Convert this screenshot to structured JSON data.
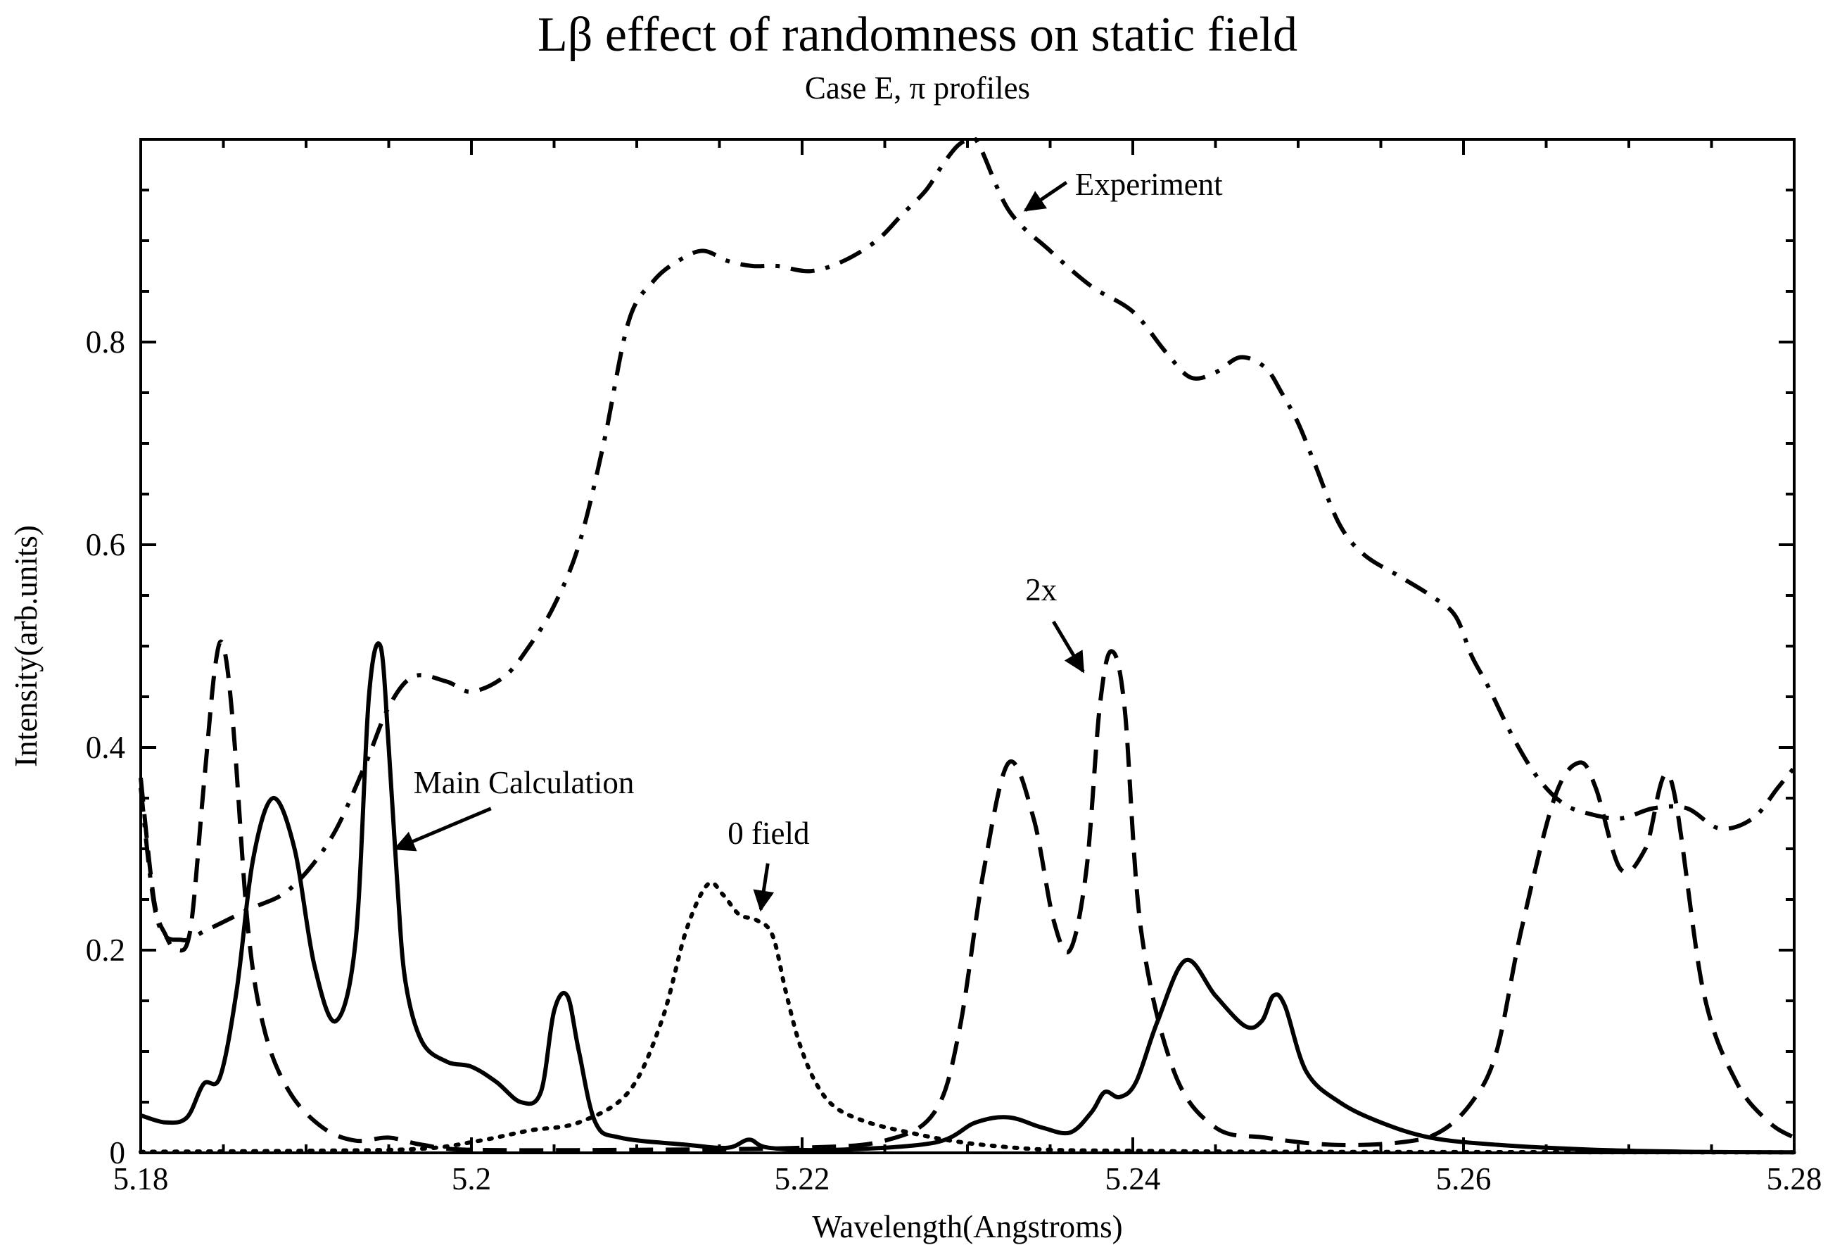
{
  "chart_data": {
    "type": "line",
    "title": "Lβ  effect of randomness on static field",
    "subtitle": "Case E, π profiles",
    "xlabel": "Wavelength(Angstroms)",
    "ylabel": "Intensity(arb.units)",
    "xlim": [
      5.18,
      5.28
    ],
    "ylim": [
      0,
      1.0
    ],
    "x_ticks": [
      5.18,
      5.2,
      5.22,
      5.24,
      5.26,
      5.28
    ],
    "x_tick_labels": [
      "5.18",
      "5.2",
      "5.22",
      "5.24",
      "5.26",
      "5.28"
    ],
    "y_ticks": [
      0,
      0.2,
      0.4,
      0.6,
      0.8
    ],
    "y_tick_labels": [
      "0",
      "0.2",
      "0.4",
      "0.6",
      "0.8"
    ],
    "series": [
      {
        "name": "Experiment",
        "style": "dash-dot",
        "x": [
          5.18,
          5.181,
          5.1825,
          5.184,
          5.1865,
          5.189,
          5.1915,
          5.1935,
          5.195,
          5.1965,
          5.1985,
          5.2,
          5.202,
          5.2035,
          5.205,
          5.2065,
          5.208,
          5.2095,
          5.211,
          5.2125,
          5.214,
          5.2155,
          5.217,
          5.2185,
          5.2205,
          5.2225,
          5.2245,
          5.226,
          5.2275,
          5.2285,
          5.2295,
          5.2305,
          5.2325,
          5.235,
          5.2375,
          5.24,
          5.242,
          5.2435,
          5.245,
          5.2465,
          5.248,
          5.249,
          5.25,
          5.251,
          5.2525,
          5.254,
          5.256,
          5.258,
          5.2595,
          5.2605,
          5.2615,
          5.263,
          5.2645,
          5.266,
          5.2675,
          5.2695,
          5.2715,
          5.2735,
          5.2755,
          5.2775,
          5.279,
          5.28
        ],
        "y": [
          0.36,
          0.23,
          0.21,
          0.22,
          0.24,
          0.26,
          0.31,
          0.38,
          0.44,
          0.47,
          0.465,
          0.455,
          0.47,
          0.5,
          0.54,
          0.6,
          0.7,
          0.82,
          0.86,
          0.88,
          0.89,
          0.88,
          0.875,
          0.875,
          0.87,
          0.88,
          0.9,
          0.925,
          0.95,
          0.975,
          0.995,
          1.0,
          0.93,
          0.89,
          0.855,
          0.83,
          0.79,
          0.765,
          0.77,
          0.785,
          0.775,
          0.75,
          0.72,
          0.68,
          0.62,
          0.59,
          0.57,
          0.55,
          0.53,
          0.49,
          0.46,
          0.41,
          0.37,
          0.345,
          0.335,
          0.33,
          0.34,
          0.34,
          0.32,
          0.33,
          0.36,
          0.38
        ]
      },
      {
        "name": "2x",
        "style": "dashed",
        "x": [
          5.18,
          5.1808,
          5.1815,
          5.1822,
          5.183,
          5.1838,
          5.1845,
          5.185,
          5.1856,
          5.1865,
          5.1875,
          5.189,
          5.191,
          5.193,
          5.195,
          5.197,
          5.2,
          5.21,
          5.22,
          5.225,
          5.228,
          5.2295,
          5.231,
          5.2325,
          5.234,
          5.2352,
          5.2362,
          5.2372,
          5.238,
          5.2387,
          5.2395,
          5.2405,
          5.2425,
          5.245,
          5.248,
          5.252,
          5.256,
          5.2585,
          5.2605,
          5.262,
          5.2635,
          5.2655,
          5.267,
          5.268,
          5.2695,
          5.271,
          5.2725,
          5.2745,
          5.2765,
          5.2785,
          5.28
        ],
        "y": [
          0.37,
          0.25,
          0.215,
          0.2,
          0.22,
          0.36,
          0.48,
          0.5,
          0.42,
          0.22,
          0.12,
          0.06,
          0.025,
          0.012,
          0.015,
          0.008,
          0.003,
          0.003,
          0.005,
          0.012,
          0.04,
          0.12,
          0.28,
          0.385,
          0.33,
          0.23,
          0.2,
          0.28,
          0.44,
          0.495,
          0.44,
          0.22,
          0.08,
          0.025,
          0.015,
          0.008,
          0.01,
          0.02,
          0.05,
          0.1,
          0.22,
          0.35,
          0.385,
          0.36,
          0.28,
          0.3,
          0.37,
          0.16,
          0.07,
          0.03,
          0.015
        ]
      },
      {
        "name": "Main Calculation",
        "style": "solid",
        "x": [
          5.18,
          5.1815,
          5.1828,
          5.1838,
          5.1848,
          5.1858,
          5.1868,
          5.188,
          5.1893,
          5.1905,
          5.1918,
          5.193,
          5.1938,
          5.1945,
          5.195,
          5.1955,
          5.196,
          5.197,
          5.1985,
          5.2,
          5.2015,
          5.203,
          5.2042,
          5.205,
          5.2058,
          5.2065,
          5.2075,
          5.209,
          5.213,
          5.2155,
          5.2168,
          5.218,
          5.222,
          5.228,
          5.2305,
          5.2325,
          5.2345,
          5.2362,
          5.2375,
          5.2383,
          5.2392,
          5.2402,
          5.2415,
          5.2432,
          5.245,
          5.2468,
          5.2478,
          5.2485,
          5.2492,
          5.2505,
          5.2525,
          5.255,
          5.258,
          5.262,
          5.268,
          5.274,
          5.28
        ],
        "y": [
          0.037,
          0.03,
          0.035,
          0.068,
          0.075,
          0.16,
          0.29,
          0.35,
          0.3,
          0.185,
          0.13,
          0.21,
          0.45,
          0.5,
          0.4,
          0.27,
          0.17,
          0.11,
          0.09,
          0.085,
          0.07,
          0.05,
          0.06,
          0.14,
          0.155,
          0.1,
          0.03,
          0.015,
          0.008,
          0.005,
          0.013,
          0.005,
          0.003,
          0.01,
          0.03,
          0.035,
          0.025,
          0.02,
          0.04,
          0.06,
          0.055,
          0.07,
          0.13,
          0.19,
          0.155,
          0.125,
          0.13,
          0.155,
          0.145,
          0.08,
          0.05,
          0.03,
          0.015,
          0.008,
          0.003,
          0.001,
          0.0005
        ]
      },
      {
        "name": "0 field",
        "style": "dotted",
        "x": [
          5.18,
          5.19,
          5.197,
          5.2005,
          5.2035,
          5.2065,
          5.2095,
          5.2115,
          5.213,
          5.2143,
          5.2152,
          5.2162,
          5.2172,
          5.2182,
          5.219,
          5.2198,
          5.2208,
          5.222,
          5.224,
          5.2265,
          5.229,
          5.2315,
          5.235,
          5.24,
          5.25,
          5.28
        ],
        "y": [
          0.001,
          0.002,
          0.004,
          0.012,
          0.022,
          0.03,
          0.06,
          0.13,
          0.22,
          0.265,
          0.255,
          0.235,
          0.23,
          0.215,
          0.16,
          0.11,
          0.07,
          0.045,
          0.03,
          0.02,
          0.012,
          0.007,
          0.003,
          0.002,
          0.001,
          0.0005
        ]
      }
    ],
    "annotations": [
      {
        "text": "Experiment",
        "x": 5.2365,
        "y": 0.945,
        "arrow_to": [
          5.2335,
          0.93
        ]
      },
      {
        "text": "Main Calculation",
        "x": 5.1965,
        "y": 0.355,
        "arrow_to": [
          5.1954,
          0.3
        ]
      },
      {
        "text": "0 field",
        "x": 5.2155,
        "y": 0.305,
        "arrow_to": [
          5.2175,
          0.24
        ]
      },
      {
        "text": "2x",
        "x": 5.2335,
        "y": 0.545,
        "arrow_to": [
          5.237,
          0.475
        ]
      }
    ]
  }
}
